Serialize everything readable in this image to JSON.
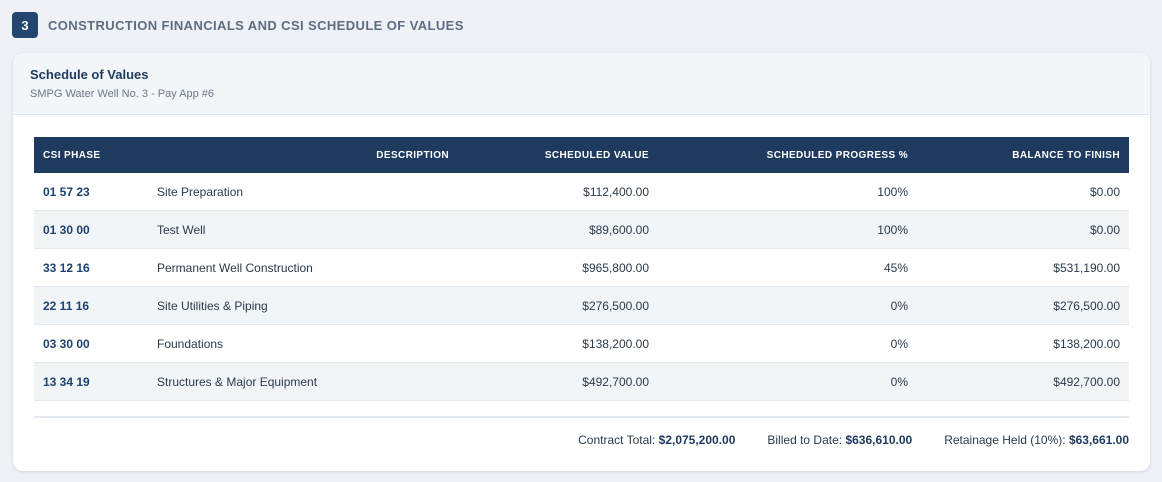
{
  "section": {
    "number": "3",
    "title": "CONSTRUCTION FINANCIALS AND CSI SCHEDULE OF VALUES"
  },
  "card": {
    "title": "Schedule of Values",
    "subtitle": "SMPG Water Well No. 3 - Pay App #6"
  },
  "table": {
    "headers": [
      "CSI PHASE",
      "DESCRIPTION",
      "SCHEDULED VALUE",
      "SCHEDULED PROGRESS %",
      "BALANCE TO FINISH"
    ],
    "rows": [
      {
        "phase": "01 57 23",
        "description": "Site Preparation",
        "value": "$112,400.00",
        "progress": "100%",
        "balance": "$0.00"
      },
      {
        "phase": "01 30 00",
        "description": "Test Well",
        "value": "$89,600.00",
        "progress": "100%",
        "balance": "$0.00"
      },
      {
        "phase": "33 12 16",
        "description": "Permanent Well Construction",
        "value": "$965,800.00",
        "progress": "45%",
        "balance": "$531,190.00"
      },
      {
        "phase": "22 11 16",
        "description": "Site Utilities & Piping",
        "value": "$276,500.00",
        "progress": "0%",
        "balance": "$276,500.00"
      },
      {
        "phase": "03 30 00",
        "description": "Foundations",
        "value": "$138,200.00",
        "progress": "0%",
        "balance": "$138,200.00"
      },
      {
        "phase": "13 34 19",
        "description": "Structures & Major Equipment",
        "value": "$492,700.00",
        "progress": "0%",
        "balance": "$492,700.00"
      }
    ]
  },
  "totals": {
    "contract_label": "Contract Total:",
    "contract_value": "$2,075,200.00",
    "billed_label": "Billed to Date:",
    "billed_value": "$636,610.00",
    "retainage_label": "Retainage Held (10%):",
    "retainage_value": "$63,661.00"
  }
}
